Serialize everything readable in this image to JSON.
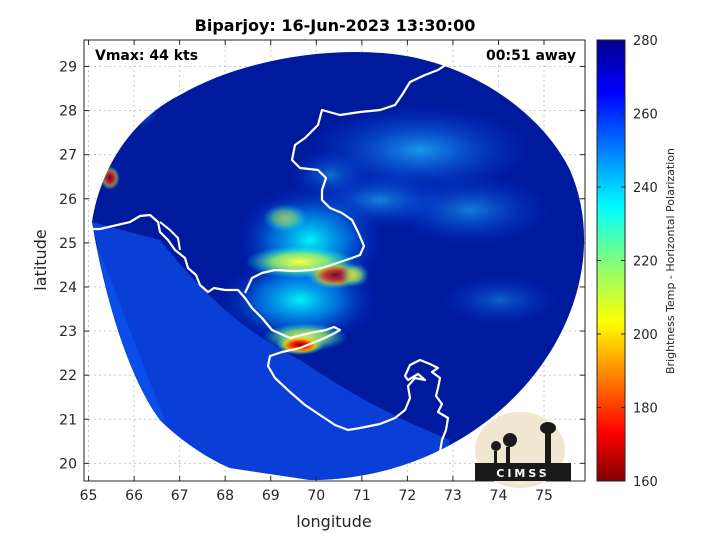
{
  "title": "Biparjoy: 16-Jun-2023 13:30:00",
  "vmax_label": "Vmax: 44 kts",
  "time_away_label": "00:51 away",
  "x_axis_label": "longitude",
  "y_axis_label": "latitude",
  "x_ticks": [
    "65",
    "66",
    "67",
    "68",
    "69",
    "70",
    "71",
    "72",
    "73",
    "74",
    "75"
  ],
  "y_ticks": [
    "20",
    "21",
    "22",
    "23",
    "24",
    "25",
    "26",
    "27",
    "28",
    "29"
  ],
  "map_extent": {
    "lon_min": 64.9,
    "lon_max": 75.9,
    "lat_min": 19.6,
    "lat_max": 29.6
  },
  "colorbar": {
    "label": "Brightness Temp - Horizontal Polarization",
    "ticks": [
      "160",
      "180",
      "200",
      "220",
      "240",
      "260",
      "280"
    ],
    "range": [
      160,
      280
    ],
    "colormap": "jet",
    "colors": [
      "#800000",
      "#ff0000",
      "#ffff00",
      "#00ffff",
      "#0000ff",
      "#00008f"
    ]
  },
  "logo_text": "CIMSS",
  "colors": {
    "background_field": "#001a9e",
    "outside_swath": "#ffffff",
    "coastline": "#ffffff"
  }
}
